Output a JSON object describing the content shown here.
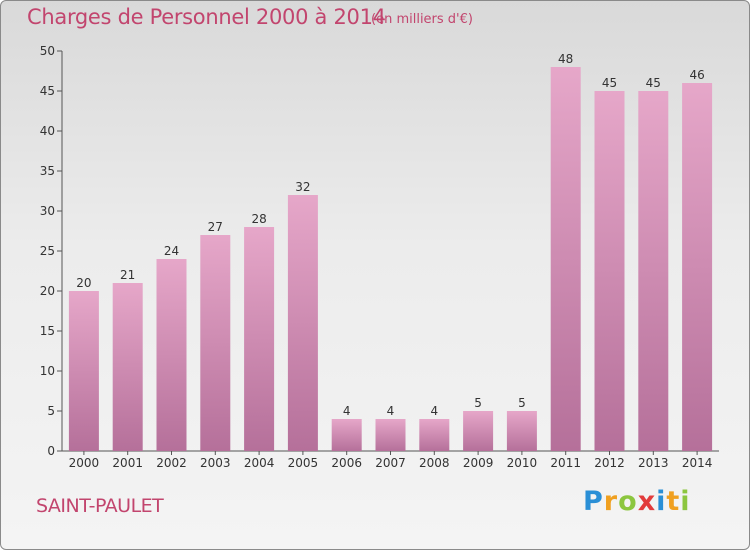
{
  "header": {
    "title": "Charges de Personnel 2000 à 2014",
    "subtitle": "(en milliers d'€)"
  },
  "footer": {
    "commune": "SAINT-PAULET",
    "logo_letters": [
      "P",
      "r",
      "o",
      "x",
      "i",
      "t",
      "i"
    ],
    "logo_colors": [
      "#2a8fd6",
      "#f0a020",
      "#8cc63f",
      "#e23b3b",
      "#2a8fd6",
      "#f0a020",
      "#8cc63f"
    ]
  },
  "colors": {
    "bar_light": "#e6a7c9",
    "bar_dark": "#b5709a",
    "accent": "#c2456e"
  },
  "chart_data": {
    "type": "bar",
    "categories": [
      "2000",
      "2001",
      "2002",
      "2003",
      "2004",
      "2005",
      "2006",
      "2007",
      "2008",
      "2009",
      "2010",
      "2011",
      "2012",
      "2013",
      "2014"
    ],
    "values": [
      20,
      21,
      24,
      27,
      28,
      32,
      4,
      4,
      4,
      5,
      5,
      48,
      45,
      45,
      46
    ],
    "title": "Charges de Personnel 2000 à 2014",
    "ylim": [
      0,
      50
    ],
    "yticks": [
      0,
      5,
      10,
      15,
      20,
      25,
      30,
      35,
      40,
      45,
      50
    ],
    "grid": false,
    "data_labels": true
  }
}
